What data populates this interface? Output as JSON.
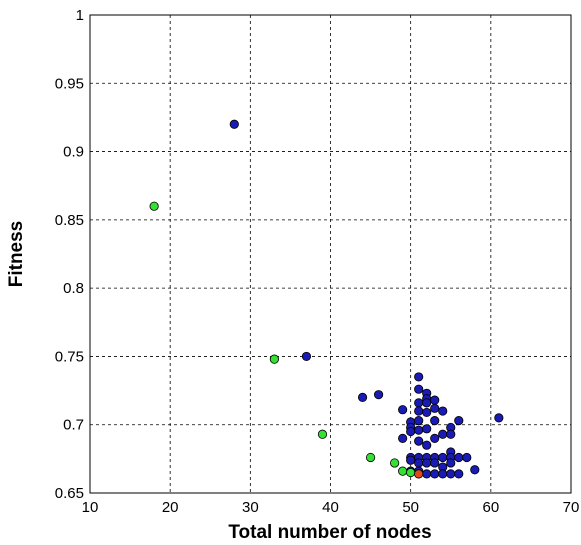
{
  "chart_data": {
    "type": "scatter",
    "title": "",
    "xlabel": "Total number of nodes",
    "ylabel": "Fitness",
    "xlim": [
      10,
      70
    ],
    "ylim": [
      0.65,
      1
    ],
    "x_ticks": [
      "10",
      "20",
      "30",
      "40",
      "50",
      "60",
      "70"
    ],
    "y_ticks": [
      "0.65",
      "0.7",
      "0.75",
      "0.8",
      "0.85",
      "0.9",
      "0.95",
      "1"
    ],
    "grid": true,
    "legend": "none",
    "series": [
      {
        "color": "#1a1ab4",
        "points": [
          [
            28,
            0.92
          ],
          [
            37,
            0.75
          ],
          [
            44,
            0.72
          ],
          [
            46,
            0.722
          ],
          [
            49,
            0.711
          ],
          [
            49,
            0.69
          ],
          [
            50,
            0.702
          ],
          [
            50,
            0.698
          ],
          [
            50,
            0.695
          ],
          [
            50,
            0.676
          ],
          [
            50,
            0.674
          ],
          [
            50,
            0.666
          ],
          [
            51,
            0.735
          ],
          [
            51,
            0.726
          ],
          [
            51,
            0.716
          ],
          [
            51,
            0.71
          ],
          [
            51,
            0.703
          ],
          [
            51,
            0.696
          ],
          [
            51,
            0.688
          ],
          [
            51,
            0.676
          ],
          [
            51,
            0.672
          ],
          [
            51,
            0.666
          ],
          [
            51,
            0.664
          ],
          [
            52,
            0.723
          ],
          [
            52,
            0.719
          ],
          [
            52,
            0.716
          ],
          [
            52,
            0.709
          ],
          [
            52,
            0.697
          ],
          [
            52,
            0.685
          ],
          [
            52,
            0.676
          ],
          [
            52,
            0.672
          ],
          [
            52,
            0.664
          ],
          [
            53,
            0.718
          ],
          [
            53,
            0.712
          ],
          [
            53,
            0.703
          ],
          [
            53,
            0.69
          ],
          [
            53,
            0.676
          ],
          [
            53,
            0.672
          ],
          [
            53,
            0.664
          ],
          [
            54,
            0.71
          ],
          [
            54,
            0.693
          ],
          [
            54,
            0.676
          ],
          [
            54,
            0.669
          ],
          [
            54,
            0.664
          ],
          [
            55,
            0.698
          ],
          [
            55,
            0.693
          ],
          [
            55,
            0.68
          ],
          [
            55,
            0.676
          ],
          [
            55,
            0.672
          ],
          [
            55,
            0.664
          ],
          [
            56,
            0.703
          ],
          [
            56,
            0.676
          ],
          [
            56,
            0.664
          ],
          [
            57,
            0.676
          ],
          [
            58,
            0.667
          ],
          [
            61,
            0.705
          ]
        ]
      },
      {
        "color": "#33e033",
        "points": [
          [
            18,
            0.86
          ],
          [
            33,
            0.748
          ],
          [
            39,
            0.693
          ],
          [
            45,
            0.676
          ],
          [
            48,
            0.672
          ],
          [
            49,
            0.666
          ],
          [
            50,
            0.665
          ]
        ]
      },
      {
        "color": "#e04a1a",
        "points": [
          [
            51,
            0.664
          ]
        ]
      }
    ]
  }
}
